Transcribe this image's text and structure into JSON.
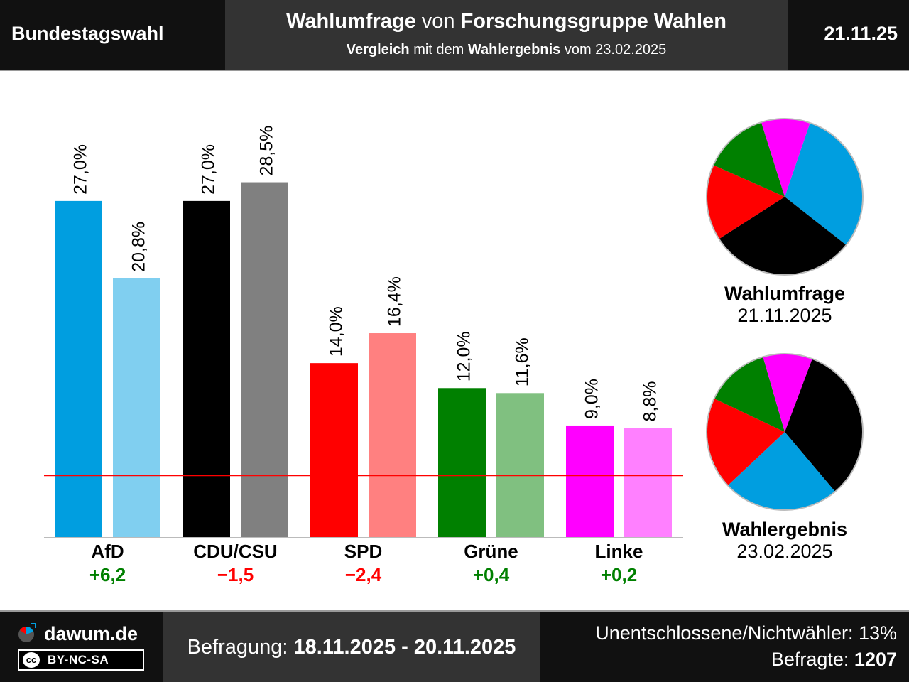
{
  "header": {
    "left_title": "Bundestagswahl",
    "main_bold1": "Wahlumfrage",
    "main_mid": " von ",
    "main_bold2": "Forschungsgruppe Wahlen",
    "sub_bold1": "Vergleich",
    "sub_mid": " mit dem ",
    "sub_bold2": "Wahlergebnis",
    "sub_tail": " vom 23.02.2025",
    "date": "21.11.25"
  },
  "chart_data": {
    "type": "bar",
    "categories": [
      "AfD",
      "CDU/CSU",
      "SPD",
      "Grüne",
      "Linke"
    ],
    "series": [
      {
        "name": "Wahlumfrage 21.11.2025",
        "values": [
          27.0,
          27.0,
          14.0,
          12.0,
          9.0
        ],
        "labels": [
          "27,0%",
          "27,0%",
          "14,0%",
          "12,0%",
          "9,0%"
        ],
        "colors": [
          "#009ee0",
          "#000000",
          "#ff0000",
          "#008000",
          "#ff00ff"
        ]
      },
      {
        "name": "Wahlergebnis 23.02.2025",
        "values": [
          20.8,
          28.5,
          16.4,
          11.6,
          8.8
        ],
        "labels": [
          "20,8%",
          "28,5%",
          "16,4%",
          "11,6%",
          "8,8%"
        ],
        "colors": [
          "#80cff0",
          "#808080",
          "#ff8080",
          "#80c080",
          "#ff80ff"
        ]
      }
    ],
    "differences": [
      "+6,2",
      "−1,5",
      "−2,4",
      "+0,4",
      "+0,2"
    ],
    "difference_colors": [
      "#008000",
      "#ff0000",
      "#ff0000",
      "#008000",
      "#008000"
    ],
    "threshold": 5,
    "threshold_color": "#ff0000",
    "ylim": [
      0,
      30
    ],
    "pies": [
      {
        "title": "Wahlumfrage",
        "date": "21.11.2025",
        "order": [
          "AfD",
          "CDU/CSU",
          "SPD",
          "Grüne",
          "Linke"
        ],
        "values": [
          27.0,
          27.0,
          14.0,
          12.0,
          9.0
        ],
        "colors": [
          "#009ee0",
          "#000000",
          "#ff0000",
          "#008000",
          "#ff00ff"
        ]
      },
      {
        "title": "Wahlergebnis",
        "date": "23.02.2025",
        "order": [
          "CDU/CSU",
          "AfD",
          "SPD",
          "Grüne",
          "Linke"
        ],
        "values": [
          28.5,
          20.8,
          16.4,
          11.6,
          8.8
        ],
        "colors": [
          "#000000",
          "#009ee0",
          "#ff0000",
          "#008000",
          "#ff00ff"
        ]
      }
    ]
  },
  "footer": {
    "brand": "dawum.de",
    "license_cc": "cc",
    "license": "BY-NC-SA",
    "field_label": "Befragung: ",
    "field_dates": "18.11.2025 - 20.11.2025",
    "undecided": "Unentschlossene/Nichtwähler: 13%",
    "respondents_label": "Befragte: ",
    "respondents_value": "1207"
  }
}
